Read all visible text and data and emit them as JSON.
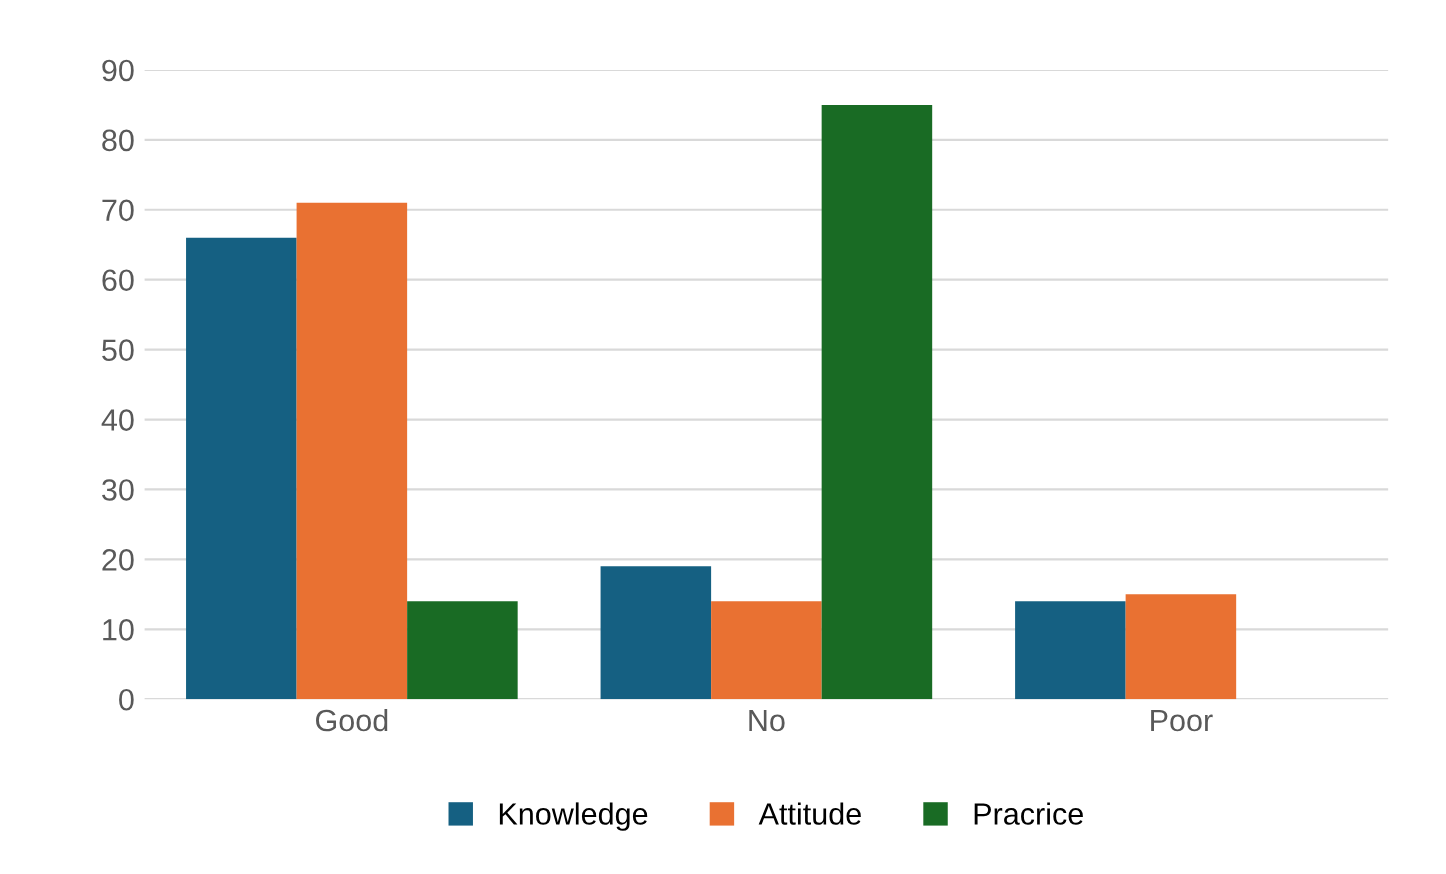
{
  "chart_data": {
    "type": "bar",
    "categories": [
      "Good",
      "No",
      "Poor"
    ],
    "series": [
      {
        "name": "Knowledge",
        "color": "#156082",
        "values": [
          66,
          19,
          14
        ]
      },
      {
        "name": "Attitude",
        "color": "#e97132",
        "values": [
          71,
          14,
          15
        ]
      },
      {
        "name": "Pracrice",
        "color": "#196b24",
        "values": [
          14,
          85,
          null
        ]
      }
    ],
    "ylim": [
      0,
      90
    ],
    "yticks": [
      0,
      10,
      20,
      30,
      40,
      50,
      60,
      70,
      80,
      90
    ],
    "grid": "y",
    "legend": "bottom"
  }
}
